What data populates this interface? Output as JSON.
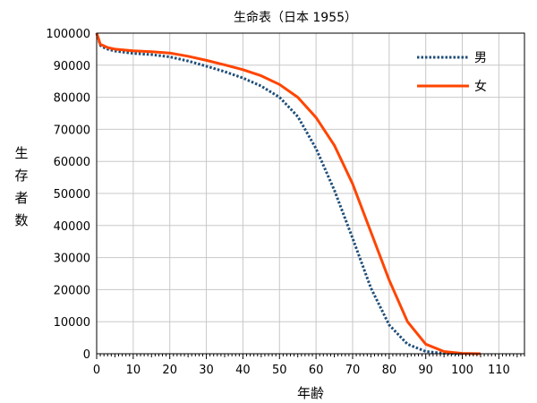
{
  "chart_data": {
    "type": "line",
    "title": "生命表（日本 1955）",
    "xlabel": "年齢",
    "ylabel": "生存者数",
    "xlim": [
      0,
      117
    ],
    "ylim": [
      0,
      100000
    ],
    "x_ticks": [
      0,
      10,
      20,
      30,
      40,
      50,
      60,
      70,
      80,
      90,
      100,
      110
    ],
    "y_ticks": [
      0,
      10000,
      20000,
      30000,
      40000,
      50000,
      60000,
      70000,
      80000,
      90000,
      100000
    ],
    "grid": true,
    "legend_position": "top-right",
    "series": [
      {
        "name": "男",
        "color": "#1f4e79",
        "style": "dotted",
        "x": [
          0,
          1,
          2,
          3,
          5,
          10,
          15,
          20,
          25,
          30,
          35,
          40,
          45,
          50,
          55,
          60,
          65,
          70,
          75,
          80,
          85,
          90,
          95,
          100
        ],
        "y": [
          100000,
          96200,
          95500,
          95000,
          94400,
          93700,
          93300,
          92600,
          91300,
          89700,
          88000,
          86000,
          83500,
          80000,
          74000,
          64000,
          51000,
          36000,
          20500,
          9000,
          3000,
          700,
          100,
          0
        ]
      },
      {
        "name": "女",
        "color": "#ff4500",
        "style": "solid",
        "x": [
          0,
          1,
          2,
          3,
          5,
          10,
          15,
          20,
          25,
          30,
          35,
          40,
          45,
          50,
          55,
          60,
          65,
          70,
          75,
          80,
          85,
          90,
          95,
          100,
          105
        ],
        "y": [
          100000,
          96500,
          96000,
          95500,
          95000,
          94500,
          94200,
          93800,
          92800,
          91500,
          90100,
          88600,
          86700,
          84000,
          80000,
          73700,
          65000,
          53000,
          38000,
          23000,
          10000,
          3000,
          700,
          100,
          0
        ]
      }
    ]
  }
}
